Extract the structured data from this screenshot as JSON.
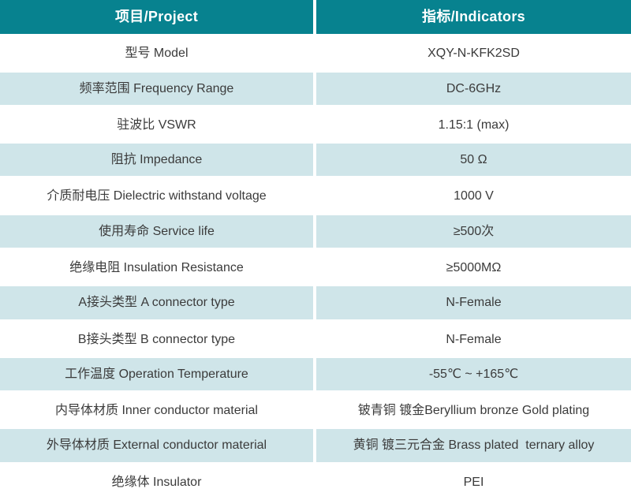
{
  "table": {
    "header": {
      "project": "项目/Project",
      "indicators": "指标/Indicators"
    },
    "rows": [
      {
        "project": "型号 Model",
        "indicator": "XQY-N-KFK2SD"
      },
      {
        "project": "频率范围 Frequency Range",
        "indicator": "DC-6GHz"
      },
      {
        "project": "驻波比 VSWR",
        "indicator": "1.15:1 (max)"
      },
      {
        "project": "阻抗 Impedance",
        "indicator": "50 Ω"
      },
      {
        "project": "介质耐电压 Dielectric withstand voltage",
        "indicator": "1000 V"
      },
      {
        "project": "使用寿命 Service life",
        "indicator": "≥500次"
      },
      {
        "project": "绝缘电阻 Insulation Resistance",
        "indicator": "≥5000MΩ"
      },
      {
        "project": "A接头类型 A connector type",
        "indicator": "N-Female"
      },
      {
        "project": "B接头类型 B connector type",
        "indicator": "N-Female"
      },
      {
        "project": "工作温度 Operation Temperature",
        "indicator": "-55℃ ~ +165℃"
      },
      {
        "project": "内导体材质 Inner conductor material",
        "indicator": "铍青铜 镀金Beryllium bronze Gold plating"
      },
      {
        "project": "外导体材质 External conductor material",
        "indicator": "黄铜 镀三元合金 Brass plated  ternary alloy"
      },
      {
        "project": "绝缘体 Insulator",
        "indicator": "PEI"
      }
    ],
    "colors": {
      "header_bg": "#07828F",
      "header_text": "#FFFFFF",
      "alt_row_bg": "#CFE5E9",
      "body_text": "#3B3B3B",
      "divider": "#FFFFFF"
    }
  }
}
